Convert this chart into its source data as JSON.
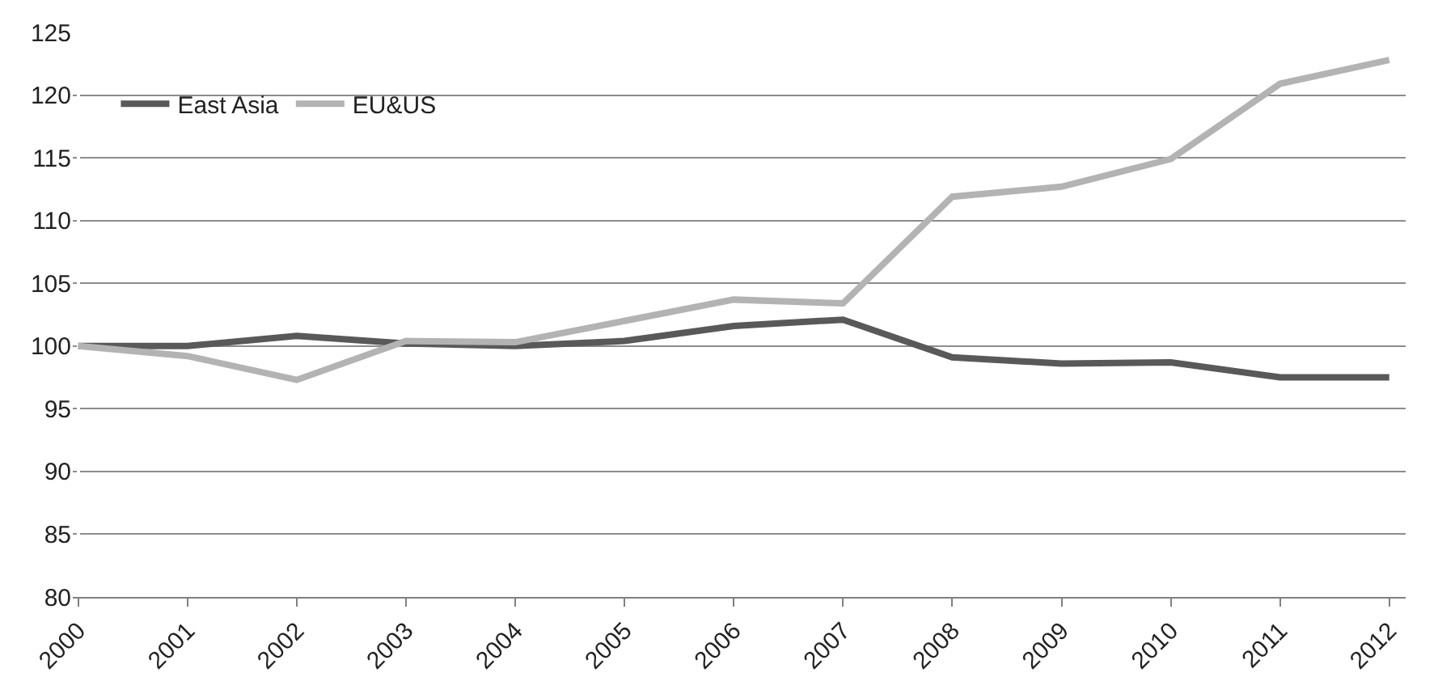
{
  "chart_data": {
    "type": "line",
    "categories": [
      "2000",
      "2001",
      "2002",
      "2003",
      "2004",
      "2005",
      "2006",
      "2007",
      "2008",
      "2009",
      "2010",
      "2011",
      "2012"
    ],
    "series": [
      {
        "name": "East Asia",
        "color": "#595959",
        "values": [
          100,
          100,
          100.8,
          100.2,
          100,
          100.4,
          101.6,
          102.1,
          99.1,
          98.6,
          98.7,
          97.5,
          97.5
        ]
      },
      {
        "name": "EU&US",
        "color": "#b3b3b3",
        "values": [
          100,
          99.2,
          97.3,
          100.4,
          100.3,
          102,
          103.7,
          103.4,
          111.9,
          112.7,
          114.9,
          120.9,
          122.8
        ]
      }
    ],
    "ylim": [
      80,
      125
    ],
    "yticks": [
      80,
      85,
      90,
      95,
      100,
      105,
      110,
      115,
      120,
      125
    ],
    "grid": "y",
    "legend": "top left",
    "marker": "none",
    "line_style": "solid"
  }
}
